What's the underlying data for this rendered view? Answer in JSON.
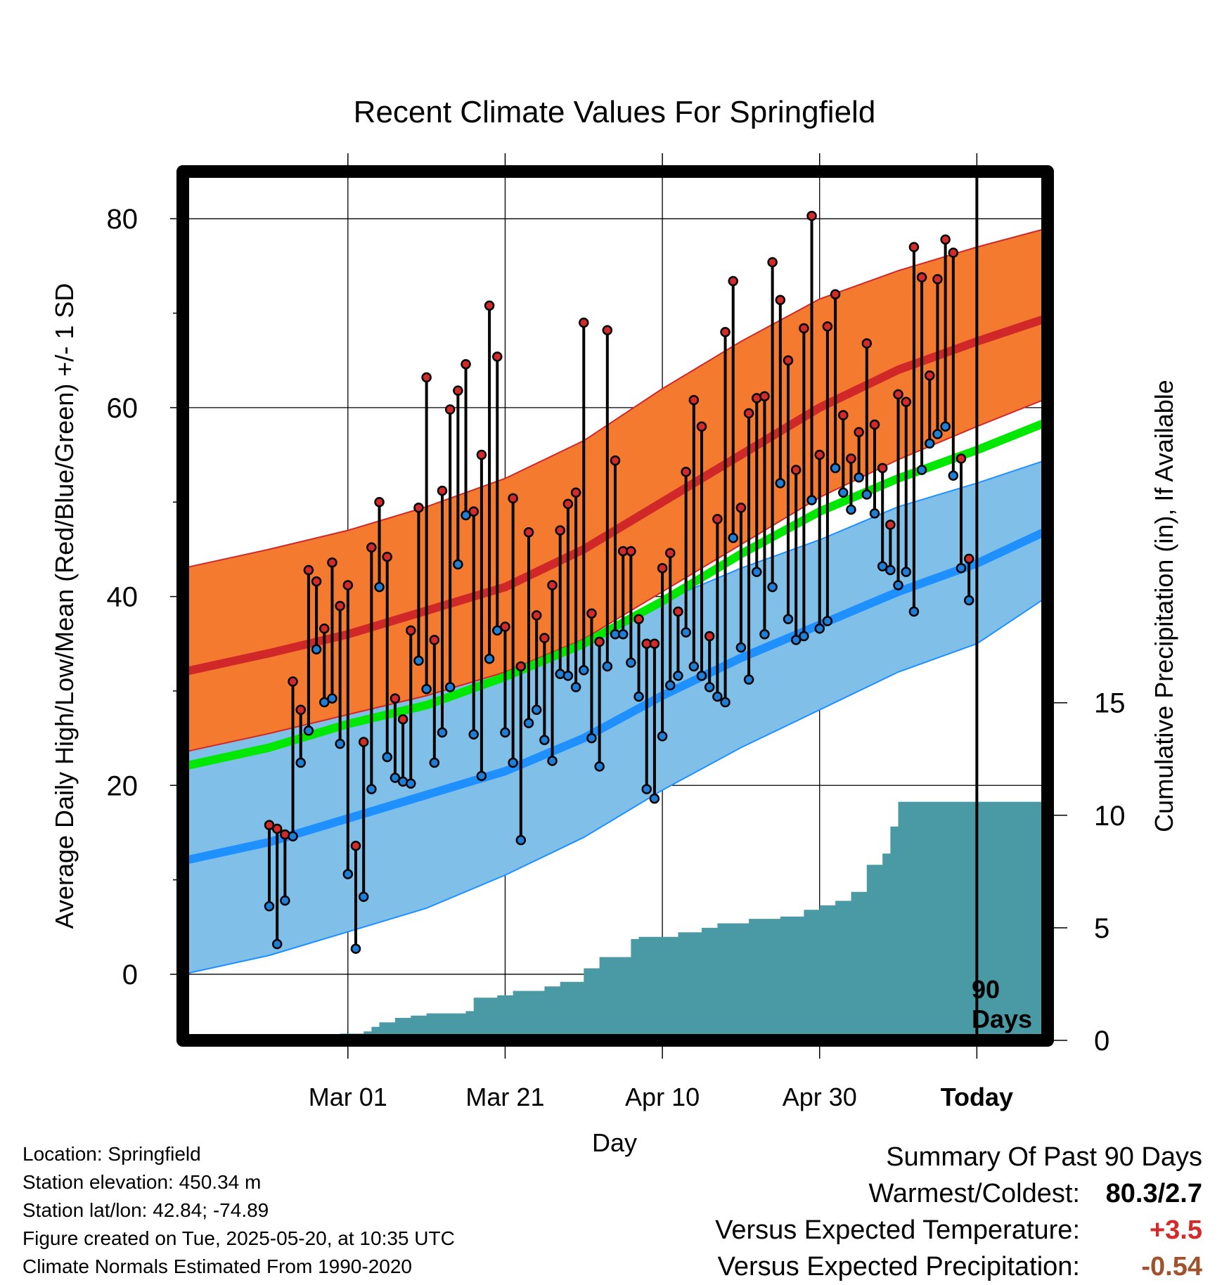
{
  "title": "Recent Climate Values For Springfield",
  "y_label_left": "Average Daily High/Low/Mean (Red/Blue/Green) +/- 1 SD",
  "y_label_right": "Cumulative Precipitation (in), If Available",
  "x_label": "Day",
  "today_label": "Today",
  "window_label_line1": "90",
  "window_label_line2": "Days",
  "info": {
    "location": "Location: Springfield",
    "elevation": "Station elevation: 450.34 m",
    "latlon": "Station lat/lon: 42.84; -74.89",
    "created": "Figure created on Tue, 2025-05-20, at 10:35 UTC",
    "normals": "Climate Normals Estimated From 1990-2020"
  },
  "summary": {
    "heading": "Summary Of Past 90 Days",
    "warmest_coldest_label": "Warmest/Coldest:",
    "warmest_coldest_value": "80.3/2.7",
    "temp_label": "Versus Expected Temperature:",
    "temp_value": "+3.5",
    "temp_color": "#d42a2a",
    "precip_label": "Versus Expected Precipitation:",
    "precip_value": "-0.54",
    "precip_color": "#a0522d"
  },
  "colors": {
    "high_band": "#f47a30",
    "high_mean": "#d02828",
    "low_band": "#80c0e8",
    "low_mean": "#1e90ff",
    "mean_line": "#00e800",
    "precip_fill": "#4a9aa5",
    "high_dot": "#d42a2a",
    "low_dot": "#1e7fd8"
  },
  "chart_data": {
    "type": "line",
    "x_range_days": [
      -101,
      9
    ],
    "x_ticks": [
      {
        "day": -80,
        "label": "Mar 01"
      },
      {
        "day": -60,
        "label": "Mar 21"
      },
      {
        "day": -40,
        "label": "Apr 10"
      },
      {
        "day": -20,
        "label": "Apr 30"
      },
      {
        "day": 0,
        "label": "Today"
      }
    ],
    "today_day": 0,
    "ylim_temp": [
      -7,
      85
    ],
    "y_ticks_temp": [
      0,
      20,
      40,
      60,
      80
    ],
    "y_minor_temp": [
      10,
      30,
      50,
      70
    ],
    "ylim_precip": [
      0,
      38.6
    ],
    "y_ticks_precip": [
      0,
      5,
      10,
      15
    ],
    "normals": {
      "days": [
        -101,
        -90,
        -80,
        -70,
        -60,
        -50,
        -40,
        -30,
        -20,
        -10,
        0,
        9
      ],
      "high_mean": [
        32,
        34,
        36,
        38.5,
        41,
        45,
        50,
        55,
        60,
        64,
        67,
        69.5
      ],
      "high_sd_upper": [
        43,
        45,
        47,
        49.5,
        52.5,
        56.5,
        62,
        67,
        71.5,
        74.5,
        77,
        79
      ],
      "high_sd_lower": [
        23.5,
        25.5,
        27.5,
        29.5,
        32,
        35.5,
        40.5,
        45.5,
        50.5,
        54.5,
        58,
        61
      ],
      "low_mean": [
        12,
        14,
        16.5,
        19,
        21.5,
        25,
        29.5,
        33.5,
        37,
        40.5,
        43.5,
        47
      ],
      "low_sd_upper": [
        24.5,
        26,
        28,
        30,
        32.5,
        35.5,
        39.5,
        43,
        46,
        49.5,
        52,
        54.5
      ],
      "low_sd_lower": [
        0,
        2,
        4.5,
        7,
        10.5,
        14.5,
        19.5,
        24,
        28,
        32,
        35,
        40
      ],
      "mean_line": [
        22,
        24,
        26.5,
        28.5,
        31.5,
        35,
        39.5,
        44.5,
        49,
        52.5,
        55.5,
        58.5
      ]
    },
    "daily_high": [
      15.8,
      15.4,
      14.8,
      31,
      28,
      42.8,
      41.6,
      36.6,
      43.6,
      39,
      41.2,
      13.6,
      24.6,
      45.2,
      50,
      44.2,
      29.2,
      27,
      36.4,
      49.4,
      63.2,
      35.4,
      51.2,
      59.8,
      61.8,
      64.6,
      49,
      55,
      70.8,
      65.4,
      36.8,
      50.4,
      32.6,
      46.8,
      38,
      35.6,
      41.2,
      47,
      49.8,
      51,
      69,
      38.2,
      35.2,
      68.2,
      54.4,
      44.8,
      44.8,
      37.6,
      35,
      35,
      43,
      44.6,
      38.4,
      53.2,
      60.8,
      58,
      35.8,
      48.2,
      68,
      73.4,
      49.4,
      59.4,
      61,
      61.2,
      75.4,
      71.4,
      65,
      53.4,
      68.4,
      80.3,
      55,
      68.6,
      72,
      59.2,
      54.6,
      57.4,
      66.8,
      58.2,
      53.6,
      47.6,
      61.4,
      60.6,
      77,
      73.8,
      63.4,
      73.6,
      77.8,
      76.4,
      54.6,
      44
    ],
    "daily_low": [
      7.2,
      3.2,
      7.8,
      14.6,
      22.4,
      25.8,
      34.4,
      28.8,
      29.2,
      24.4,
      10.6,
      2.7,
      8.2,
      19.6,
      41,
      23,
      20.8,
      20.4,
      20.2,
      33.2,
      30.2,
      22.4,
      25.6,
      30.4,
      43.4,
      48.6,
      25.4,
      21,
      33.4,
      36.4,
      25.6,
      22.4,
      14.2,
      26.6,
      28,
      24.8,
      22.6,
      31.8,
      31.6,
      30.4,
      32.2,
      25,
      22,
      32.6,
      36,
      36,
      33,
      29.4,
      19.6,
      18.6,
      25.2,
      30.6,
      31.6,
      36.2,
      32.6,
      31.6,
      30.4,
      29.4,
      28.8,
      46.2,
      34.6,
      31.2,
      42.6,
      36,
      41,
      52,
      37.6,
      35.4,
      35.8,
      50.2,
      36.6,
      37.4,
      53.6,
      51,
      49.2,
      52.6,
      50.8,
      48.8,
      43.2,
      42.8,
      41.2,
      42.6,
      38.4,
      53.4,
      56.2,
      57.2,
      58,
      52.8,
      43,
      39.6
    ],
    "daily_x_start_day": -90,
    "daily_x_step_day": 1,
    "precip_cumulative": {
      "days": [
        -90,
        -81,
        -78,
        -77,
        -76,
        -74,
        -72,
        -70,
        -65,
        -64,
        -61,
        -59,
        -55,
        -53,
        -50,
        -48,
        -44,
        -43,
        -38,
        -35,
        -33,
        -29,
        -25,
        -22,
        -20,
        -18,
        -16,
        -14,
        -12,
        -11,
        -10,
        9
      ],
      "values": [
        0,
        0.3,
        0.4,
        0.6,
        0.8,
        1.0,
        1.1,
        1.2,
        1.3,
        1.9,
        2.0,
        2.2,
        2.4,
        2.6,
        3.2,
        3.7,
        4.5,
        4.6,
        4.8,
        5.0,
        5.2,
        5.4,
        5.5,
        5.8,
        6.0,
        6.2,
        6.6,
        7.8,
        8.3,
        9.5,
        10.6,
        10.6
      ]
    }
  }
}
